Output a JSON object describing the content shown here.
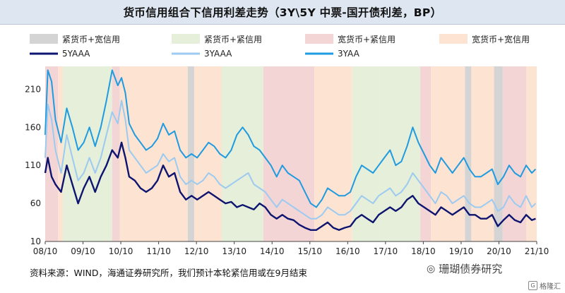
{
  "title": "货币信用组合下信用利差走势（3Y\\5Y 中票-国开债利差，BP）",
  "source_note": "资料来源：WIND，海通证券研究所，我们预计本轮紧信用或在9月结束",
  "watermark": "珊瑚债券研究",
  "badge": "格隆汇",
  "colors": {
    "tight_money_loose_credit": "#d4d4d4",
    "tight_money_tight_credit": "#e5efd9",
    "loose_money_tight_credit": "#f4d5d5",
    "loose_money_loose_credit": "#fde3d2",
    "5YAAA": "#0d1570",
    "3YAAA": "#9ccaf0",
    "3YAA": "#1f9be0"
  },
  "chart_data": {
    "type": "line",
    "x_ticks": [
      "08/10",
      "09/10",
      "10/10",
      "11/10",
      "12/10",
      "13/10",
      "14/10",
      "15/10",
      "16/10",
      "17/10",
      "18/10",
      "19/10",
      "20/10",
      "21/10"
    ],
    "ylim": [
      10,
      240
    ],
    "yticks": [
      10,
      60,
      110,
      160,
      210
    ],
    "legend": [
      {
        "label": "紧货币+宽信用",
        "kind": "area",
        "key": "tight_money_loose_credit"
      },
      {
        "label": "紧货币+紧信用",
        "kind": "area",
        "key": "tight_money_tight_credit"
      },
      {
        "label": "宽货币+紧信用",
        "kind": "area",
        "key": "loose_money_tight_credit"
      },
      {
        "label": "宽货币+宽信用",
        "kind": "area",
        "key": "loose_money_loose_credit"
      },
      {
        "label": "5YAAA",
        "kind": "line",
        "key": "5YAAA"
      },
      {
        "label": "3YAAA",
        "kind": "line",
        "key": "3YAAA"
      },
      {
        "label": "3YAA",
        "kind": "line",
        "key": "3YAA"
      }
    ],
    "regimes": [
      {
        "start": 2008.78,
        "end": 2009.12,
        "type": "loose_money_tight_credit"
      },
      {
        "start": 2009.12,
        "end": 2009.25,
        "type": "loose_money_loose_credit"
      },
      {
        "start": 2009.25,
        "end": 2010.55,
        "type": "tight_money_tight_credit"
      },
      {
        "start": 2010.55,
        "end": 2010.75,
        "type": "loose_money_tight_credit"
      },
      {
        "start": 2010.75,
        "end": 2012.55,
        "type": "loose_money_loose_credit"
      },
      {
        "start": 2012.55,
        "end": 2012.72,
        "type": "tight_money_loose_credit"
      },
      {
        "start": 2012.72,
        "end": 2013.45,
        "type": "loose_money_loose_credit"
      },
      {
        "start": 2013.45,
        "end": 2014.55,
        "type": "tight_money_tight_credit"
      },
      {
        "start": 2014.55,
        "end": 2015.9,
        "type": "loose_money_tight_credit"
      },
      {
        "start": 2015.9,
        "end": 2016.9,
        "type": "loose_money_loose_credit"
      },
      {
        "start": 2016.9,
        "end": 2017.6,
        "type": "tight_money_tight_credit"
      },
      {
        "start": 2017.6,
        "end": 2018.7,
        "type": "tight_money_tight_credit"
      },
      {
        "start": 2018.7,
        "end": 2018.98,
        "type": "loose_money_tight_credit"
      },
      {
        "start": 2018.98,
        "end": 2019.88,
        "type": "loose_money_loose_credit"
      },
      {
        "start": 2019.88,
        "end": 2020.05,
        "type": "tight_money_loose_credit"
      },
      {
        "start": 2020.05,
        "end": 2020.65,
        "type": "loose_money_loose_credit"
      },
      {
        "start": 2020.65,
        "end": 2020.88,
        "type": "tight_money_loose_credit"
      },
      {
        "start": 2020.88,
        "end": 2021.5,
        "type": "loose_money_tight_credit"
      },
      {
        "start": 2021.5,
        "end": 2021.78,
        "type": "loose_money_loose_credit"
      }
    ],
    "series": [
      {
        "name": "5YAAA",
        "x": [
          2008.78,
          2008.85,
          2008.95,
          2009.05,
          2009.2,
          2009.35,
          2009.5,
          2009.65,
          2009.8,
          2009.95,
          2010.1,
          2010.25,
          2010.4,
          2010.55,
          2010.7,
          2010.8,
          2010.9,
          2011.0,
          2011.15,
          2011.3,
          2011.45,
          2011.6,
          2011.75,
          2011.9,
          2012.05,
          2012.2,
          2012.35,
          2012.5,
          2012.65,
          2012.8,
          2012.95,
          2013.1,
          2013.25,
          2013.4,
          2013.55,
          2013.7,
          2013.85,
          2014.0,
          2014.15,
          2014.3,
          2014.45,
          2014.6,
          2014.75,
          2014.9,
          2015.05,
          2015.2,
          2015.35,
          2015.5,
          2015.65,
          2015.8,
          2015.95,
          2016.1,
          2016.25,
          2016.4,
          2016.55,
          2016.7,
          2016.85,
          2017.0,
          2017.15,
          2017.3,
          2017.45,
          2017.6,
          2017.75,
          2017.9,
          2018.05,
          2018.2,
          2018.35,
          2018.5,
          2018.65,
          2018.8,
          2018.95,
          2019.1,
          2019.25,
          2019.4,
          2019.55,
          2019.7,
          2019.85,
          2020.0,
          2020.15,
          2020.3,
          2020.45,
          2020.6,
          2020.75,
          2020.9,
          2021.05,
          2021.2,
          2021.35,
          2021.5,
          2021.65,
          2021.75
        ],
        "values": [
          100,
          120,
          95,
          85,
          75,
          110,
          85,
          60,
          80,
          95,
          75,
          95,
          110,
          130,
          120,
          140,
          120,
          95,
          90,
          80,
          75,
          80,
          90,
          110,
          95,
          100,
          75,
          65,
          70,
          65,
          70,
          75,
          70,
          65,
          60,
          62,
          55,
          58,
          55,
          52,
          60,
          55,
          45,
          40,
          45,
          40,
          38,
          32,
          28,
          25,
          25,
          30,
          35,
          28,
          25,
          28,
          30,
          40,
          45,
          40,
          35,
          45,
          50,
          55,
          50,
          55,
          65,
          70,
          60,
          55,
          50,
          45,
          55,
          50,
          45,
          50,
          55,
          45,
          45,
          40,
          40,
          45,
          30,
          38,
          45,
          38,
          35,
          45,
          38,
          40
        ]
      },
      {
        "name": "3YAAA",
        "x": [
          2008.78,
          2008.85,
          2008.95,
          2009.05,
          2009.2,
          2009.35,
          2009.5,
          2009.65,
          2009.8,
          2009.95,
          2010.1,
          2010.25,
          2010.4,
          2010.55,
          2010.7,
          2010.8,
          2010.9,
          2011.0,
          2011.15,
          2011.3,
          2011.45,
          2011.6,
          2011.75,
          2011.9,
          2012.05,
          2012.2,
          2012.35,
          2012.5,
          2012.65,
          2012.8,
          2012.95,
          2013.1,
          2013.25,
          2013.4,
          2013.55,
          2013.7,
          2013.85,
          2014.0,
          2014.15,
          2014.3,
          2014.45,
          2014.6,
          2014.75,
          2014.9,
          2015.05,
          2015.2,
          2015.35,
          2015.5,
          2015.65,
          2015.8,
          2015.95,
          2016.1,
          2016.25,
          2016.4,
          2016.55,
          2016.7,
          2016.85,
          2017.0,
          2017.15,
          2017.3,
          2017.45,
          2017.6,
          2017.75,
          2017.9,
          2018.05,
          2018.2,
          2018.35,
          2018.5,
          2018.65,
          2018.8,
          2018.95,
          2019.1,
          2019.25,
          2019.4,
          2019.55,
          2019.7,
          2019.85,
          2020.0,
          2020.15,
          2020.3,
          2020.45,
          2020.6,
          2020.75,
          2020.9,
          2021.05,
          2021.2,
          2021.35,
          2021.5,
          2021.65,
          2021.75
        ],
        "values": [
          120,
          190,
          170,
          130,
          100,
          150,
          120,
          90,
          100,
          120,
          100,
          120,
          150,
          180,
          165,
          195,
          170,
          130,
          120,
          110,
          100,
          105,
          110,
          125,
          115,
          120,
          95,
          85,
          90,
          85,
          90,
          100,
          95,
          85,
          80,
          85,
          90,
          95,
          100,
          85,
          80,
          75,
          65,
          55,
          65,
          60,
          55,
          50,
          45,
          40,
          40,
          45,
          55,
          50,
          45,
          45,
          50,
          60,
          70,
          65,
          60,
          70,
          75,
          80,
          70,
          75,
          85,
          100,
          90,
          80,
          70,
          60,
          75,
          70,
          60,
          65,
          70,
          60,
          55,
          55,
          60,
          65,
          50,
          55,
          70,
          60,
          55,
          70,
          55,
          60
        ]
      },
      {
        "name": "3YAA",
        "x": [
          2008.78,
          2008.85,
          2008.95,
          2009.05,
          2009.2,
          2009.35,
          2009.5,
          2009.65,
          2009.8,
          2009.95,
          2010.1,
          2010.25,
          2010.4,
          2010.55,
          2010.7,
          2010.8,
          2010.9,
          2011.0,
          2011.15,
          2011.3,
          2011.45,
          2011.6,
          2011.75,
          2011.9,
          2012.05,
          2012.2,
          2012.35,
          2012.5,
          2012.65,
          2012.8,
          2012.95,
          2013.1,
          2013.25,
          2013.4,
          2013.55,
          2013.7,
          2013.85,
          2014.0,
          2014.15,
          2014.3,
          2014.45,
          2014.6,
          2014.75,
          2014.9,
          2015.05,
          2015.2,
          2015.35,
          2015.5,
          2015.65,
          2015.8,
          2015.95,
          2016.1,
          2016.25,
          2016.4,
          2016.55,
          2016.7,
          2016.85,
          2017.0,
          2017.15,
          2017.3,
          2017.45,
          2017.6,
          2017.75,
          2017.9,
          2018.05,
          2018.2,
          2018.35,
          2018.5,
          2018.65,
          2018.8,
          2018.95,
          2019.1,
          2019.25,
          2019.4,
          2019.55,
          2019.7,
          2019.85,
          2020.0,
          2020.15,
          2020.3,
          2020.45,
          2020.6,
          2020.75,
          2020.9,
          2021.05,
          2021.2,
          2021.35,
          2021.5,
          2021.65,
          2021.75
        ],
        "values": [
          150,
          235,
          220,
          170,
          140,
          185,
          160,
          130,
          140,
          160,
          135,
          160,
          195,
          235,
          215,
          225,
          205,
          165,
          150,
          140,
          130,
          135,
          145,
          165,
          150,
          155,
          130,
          120,
          125,
          120,
          130,
          140,
          135,
          125,
          120,
          130,
          150,
          160,
          150,
          135,
          130,
          120,
          110,
          95,
          110,
          100,
          95,
          90,
          75,
          60,
          55,
          65,
          80,
          75,
          70,
          70,
          75,
          95,
          110,
          105,
          100,
          110,
          120,
          130,
          110,
          115,
          135,
          160,
          140,
          125,
          110,
          100,
          120,
          110,
          100,
          110,
          120,
          105,
          95,
          95,
          100,
          105,
          85,
          95,
          110,
          100,
          95,
          110,
          100,
          105
        ]
      }
    ]
  }
}
